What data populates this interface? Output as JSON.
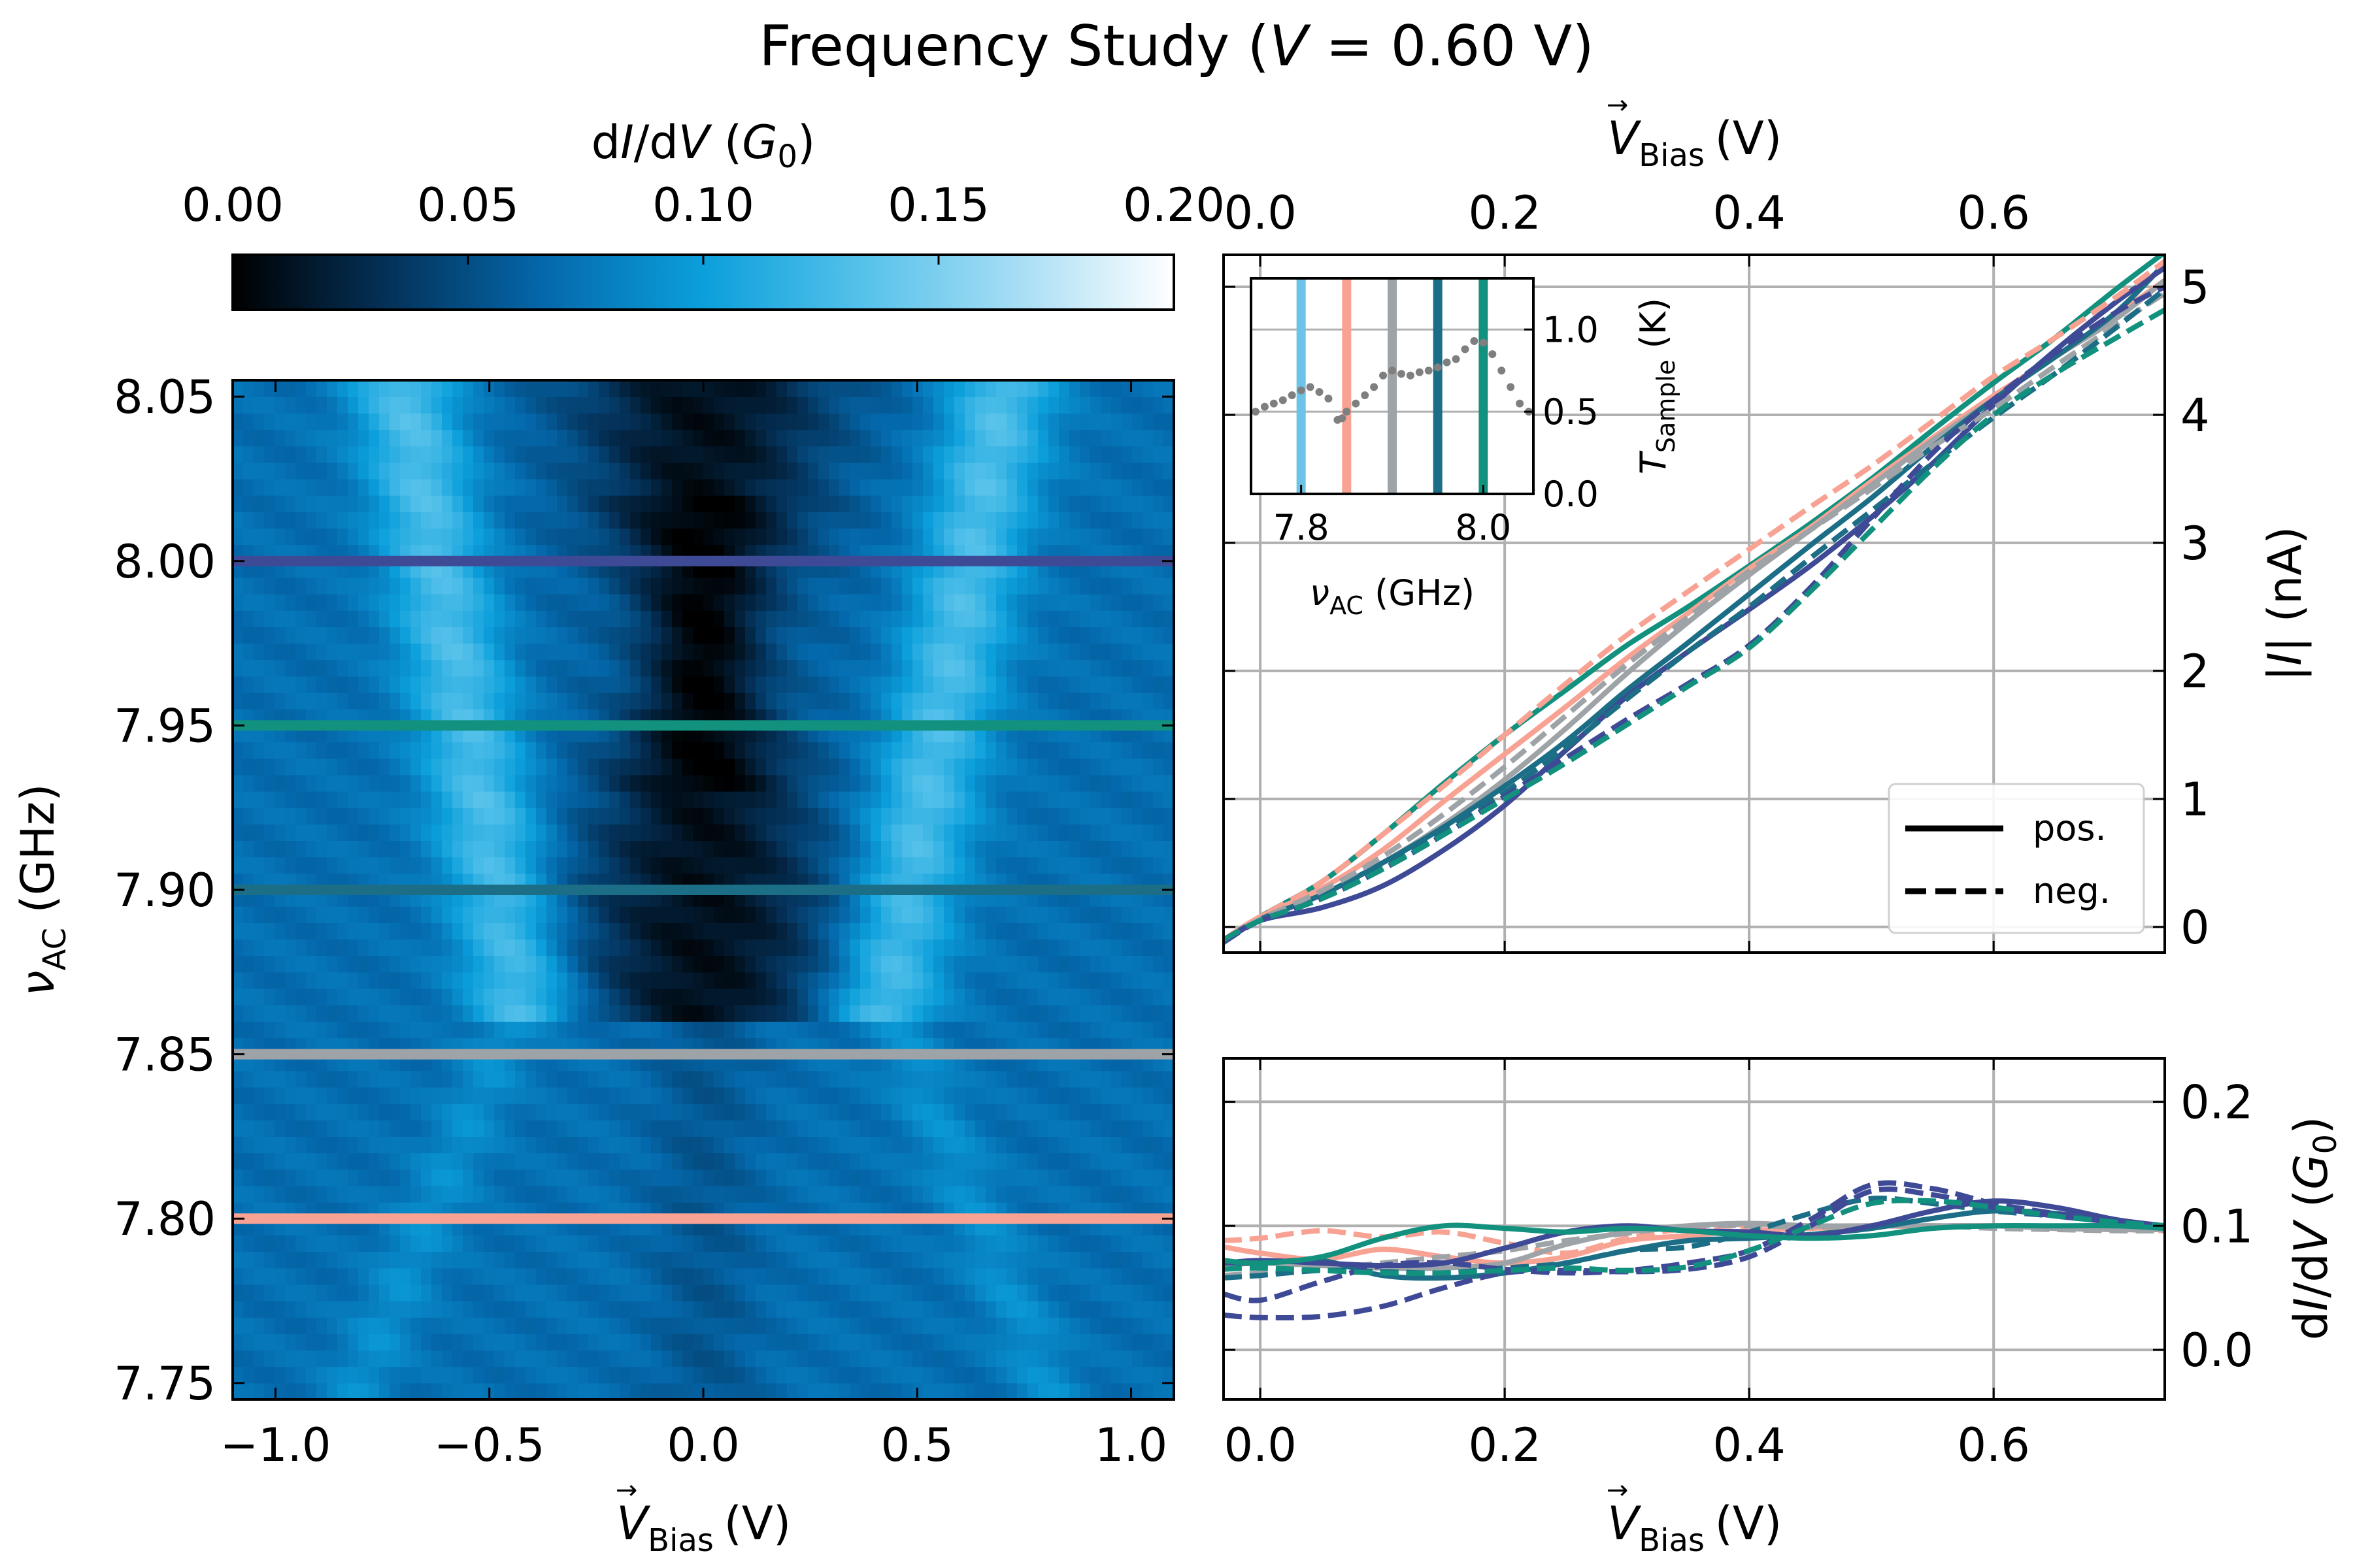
{
  "colors": {
    "purple": "#3f4a96",
    "teal": "#12917f",
    "darkteal": "#1c6e86",
    "gray": "#9ea3a7",
    "salmon": "#f8a293",
    "skyblue": "#6cc3e6",
    "dots": "#7f7f7f",
    "grid": "#b0b0b0"
  },
  "colormap": {
    "label_pre": "d",
    "label_I": "I",
    "label_mid": "/d",
    "label_V": "V",
    "label_paren_open": " (",
    "label_G": "G",
    "label_0": "0",
    "label_paren_close": ")",
    "ticks": [
      "0.00",
      "0.05",
      "0.10",
      "0.15",
      "0.20"
    ],
    "range": [
      0,
      0.2
    ],
    "stops": [
      "#000000",
      "#04325a",
      "#0469ac",
      "#0b9fdb",
      "#54c1ea",
      "#a6ddf4",
      "#ffffff"
    ]
  },
  "chart_data": [
    {
      "type": "heatmap",
      "title": "Frequency Study (V = 0.60 V)",
      "xlabel": "V→Bias (V)",
      "ylabel": "νAC (GHz)",
      "xlim": [
        -1.1,
        1.1
      ],
      "ylim": [
        7.745,
        8.055
      ],
      "xticks": [
        "−1.0",
        "−0.5",
        "0.0",
        "0.5",
        "1.0"
      ],
      "yticks": [
        "7.75",
        "7.80",
        "7.85",
        "7.90",
        "7.95",
        "8.00",
        "8.05"
      ],
      "yticks_values": [
        7.75,
        7.8,
        7.85,
        7.9,
        7.95,
        8.0,
        8.05
      ],
      "xticks_values": [
        -1.0,
        -0.5,
        0.0,
        0.5,
        1.0
      ],
      "colorbar_label": "dI/dV (G0)",
      "colorbar_range": [
        0,
        0.2
      ],
      "baseline_dIdV": 0.07,
      "features": [
        {
          "kind": "central dip",
          "x_center": 0.0,
          "min_dIdV": 0.01,
          "y_range": [
            7.86,
            8.055
          ]
        },
        {
          "kind": "side maxima",
          "x_center": [
            -0.55,
            0.55
          ],
          "max_dIdV": 0.13,
          "y_range": [
            7.86,
            8.055
          ]
        }
      ],
      "highlight_lines": [
        {
          "y": 8.0,
          "color": "purple"
        },
        {
          "y": 7.95,
          "color": "teal"
        },
        {
          "y": 7.9,
          "color": "darkteal"
        },
        {
          "y": 7.85,
          "color": "gray"
        },
        {
          "y": 7.8,
          "color": "salmon"
        }
      ]
    },
    {
      "type": "line",
      "xlabel": "V→Bias (V)",
      "ylabel": "|I| (nA)",
      "xlim": [
        -0.03,
        0.74
      ],
      "ylim": [
        -0.2,
        5.25
      ],
      "xticks": [
        "0.0",
        "0.2",
        "0.4",
        "0.6"
      ],
      "xticks_values": [
        0.0,
        0.2,
        0.4,
        0.6
      ],
      "yticks": [
        "0",
        "1",
        "2",
        "3",
        "4",
        "5"
      ],
      "yticks_values": [
        0,
        1,
        2,
        3,
        4,
        5
      ],
      "legend": {
        "entries": [
          "pos.",
          "neg."
        ],
        "placement": "lower right"
      },
      "x": [
        -0.03,
        0.0,
        0.05,
        0.1,
        0.15,
        0.2,
        0.25,
        0.3,
        0.35,
        0.4,
        0.45,
        0.5,
        0.55,
        0.6,
        0.65,
        0.7,
        0.74
      ],
      "series": [
        {
          "color": "teal",
          "dash": false,
          "values": [
            -0.12,
            0.08,
            0.35,
            0.72,
            1.12,
            1.5,
            1.85,
            2.2,
            2.5,
            2.82,
            3.15,
            3.5,
            3.88,
            4.25,
            4.6,
            4.98,
            5.27
          ]
        },
        {
          "color": "salmon",
          "dash": false,
          "values": [
            -0.1,
            0.08,
            0.3,
            0.6,
            0.98,
            1.35,
            1.72,
            2.1,
            2.45,
            2.8,
            3.12,
            3.48,
            3.82,
            4.15,
            4.45,
            4.78,
            5.05
          ]
        },
        {
          "color": "gray",
          "dash": false,
          "values": [
            -0.1,
            0.06,
            0.25,
            0.5,
            0.8,
            1.15,
            1.55,
            1.98,
            2.38,
            2.75,
            3.1,
            3.45,
            3.8,
            4.12,
            4.45,
            4.75,
            5.05
          ]
        },
        {
          "color": "darkteal",
          "dash": false,
          "values": [
            -0.1,
            0.06,
            0.25,
            0.5,
            0.78,
            1.1,
            1.45,
            1.85,
            2.22,
            2.6,
            2.98,
            3.35,
            3.75,
            4.12,
            4.45,
            4.8,
            5.18
          ]
        },
        {
          "color": "purple",
          "dash": false,
          "values": [
            -0.12,
            0.05,
            0.15,
            0.32,
            0.6,
            0.95,
            1.38,
            1.8,
            2.15,
            2.48,
            2.82,
            3.2,
            3.62,
            4.08,
            4.5,
            4.88,
            5.15
          ]
        },
        {
          "color": "salmon",
          "dash": true,
          "values": [
            -0.1,
            0.08,
            0.35,
            0.72,
            1.1,
            1.5,
            1.9,
            2.28,
            2.62,
            2.95,
            3.28,
            3.6,
            3.95,
            4.3,
            4.6,
            4.92,
            5.2
          ]
        },
        {
          "color": "gray",
          "dash": true,
          "values": [
            -0.1,
            0.06,
            0.28,
            0.55,
            0.88,
            1.25,
            1.65,
            2.05,
            2.42,
            2.78,
            3.1,
            3.42,
            3.75,
            4.05,
            4.38,
            4.7,
            4.95
          ]
        },
        {
          "color": "darkteal",
          "dash": true,
          "values": [
            -0.1,
            0.05,
            0.22,
            0.46,
            0.75,
            1.05,
            1.4,
            1.78,
            2.15,
            2.5,
            2.88,
            3.25,
            3.62,
            3.98,
            4.32,
            4.68,
            4.98
          ]
        },
        {
          "color": "purple",
          "dash": true,
          "values": [
            -0.12,
            0.05,
            0.22,
            0.45,
            0.72,
            1.02,
            1.32,
            1.62,
            1.9,
            2.2,
            2.65,
            3.18,
            3.7,
            4.12,
            4.48,
            4.8,
            5.0
          ]
        },
        {
          "color": "teal",
          "dash": true,
          "values": [
            -0.1,
            0.05,
            0.22,
            0.45,
            0.72,
            1.0,
            1.28,
            1.58,
            1.88,
            2.18,
            2.62,
            3.1,
            3.58,
            4.0,
            4.32,
            4.6,
            4.82
          ]
        }
      ]
    },
    {
      "type": "line",
      "xlabel": "V→Bias (V)",
      "ylabel": "dI/dV (G0)",
      "xlim": [
        -0.03,
        0.74
      ],
      "ylim": [
        -0.04,
        0.235
      ],
      "xticks": [
        "0.0",
        "0.2",
        "0.4",
        "0.6"
      ],
      "xticks_values": [
        0.0,
        0.2,
        0.4,
        0.6
      ],
      "yticks": [
        "0.0",
        "0.1",
        "0.2"
      ],
      "yticks_values": [
        0.0,
        0.1,
        0.2
      ],
      "x": [
        -0.03,
        0.0,
        0.05,
        0.1,
        0.15,
        0.2,
        0.25,
        0.3,
        0.35,
        0.4,
        0.45,
        0.5,
        0.55,
        0.6,
        0.65,
        0.7,
        0.74
      ],
      "series": [
        {
          "color": "salmon",
          "dash": true,
          "values": [
            0.088,
            0.09,
            0.096,
            0.091,
            0.095,
            0.086,
            0.078,
            0.09,
            0.098,
            0.1,
            0.098,
            0.1,
            0.1,
            0.1,
            0.098,
            0.097,
            0.096
          ]
        },
        {
          "color": "salmon",
          "dash": false,
          "values": [
            0.083,
            0.078,
            0.073,
            0.081,
            0.075,
            0.07,
            0.075,
            0.088,
            0.092,
            0.096,
            0.098,
            0.1,
            0.099,
            0.1,
            0.098,
            0.097,
            0.097
          ]
        },
        {
          "color": "gray",
          "dash": false,
          "values": [
            0.068,
            0.07,
            0.068,
            0.066,
            0.066,
            0.07,
            0.085,
            0.095,
            0.1,
            0.102,
            0.1,
            0.1,
            0.1,
            0.1,
            0.098,
            0.097,
            0.097
          ]
        },
        {
          "color": "gray",
          "dash": true,
          "values": [
            0.06,
            0.062,
            0.065,
            0.07,
            0.075,
            0.08,
            0.088,
            0.094,
            0.1,
            0.1,
            0.099,
            0.1,
            0.1,
            0.098,
            0.097,
            0.096,
            0.096
          ]
        },
        {
          "color": "darkteal",
          "dash": false,
          "values": [
            0.07,
            0.07,
            0.072,
            0.06,
            0.058,
            0.062,
            0.07,
            0.08,
            0.088,
            0.09,
            0.093,
            0.098,
            0.106,
            0.112,
            0.11,
            0.104,
            0.1
          ]
        },
        {
          "color": "darkteal",
          "dash": true,
          "values": [
            0.058,
            0.06,
            0.064,
            0.063,
            0.062,
            0.066,
            0.07,
            0.08,
            0.083,
            0.095,
            0.11,
            0.122,
            0.118,
            0.112,
            0.108,
            0.104,
            0.1
          ]
        },
        {
          "color": "purple",
          "dash": false,
          "values": [
            0.07,
            0.072,
            0.07,
            0.068,
            0.07,
            0.082,
            0.095,
            0.1,
            0.096,
            0.095,
            0.092,
            0.1,
            0.112,
            0.12,
            0.115,
            0.105,
            0.1
          ]
        },
        {
          "color": "purple",
          "dash": true,
          "values": [
            0.045,
            0.04,
            0.055,
            0.068,
            0.07,
            0.065,
            0.062,
            0.064,
            0.07,
            0.08,
            0.105,
            0.133,
            0.13,
            0.118,
            0.11,
            0.104,
            0.1
          ]
        },
        {
          "color": "purple",
          "dash": true,
          "values": [
            0.028,
            0.026,
            0.027,
            0.035,
            0.05,
            0.062,
            0.064,
            0.063,
            0.065,
            0.075,
            0.1,
            0.128,
            0.125,
            0.115,
            0.108,
            0.103,
            0.1
          ]
        },
        {
          "color": "teal",
          "dash": false,
          "values": [
            0.072,
            0.07,
            0.075,
            0.09,
            0.1,
            0.098,
            0.095,
            0.098,
            0.096,
            0.092,
            0.09,
            0.092,
            0.098,
            0.1,
            0.1,
            0.1,
            0.098
          ]
        },
        {
          "color": "teal",
          "dash": true,
          "values": [
            0.065,
            0.066,
            0.064,
            0.062,
            0.062,
            0.064,
            0.066,
            0.064,
            0.067,
            0.08,
            0.1,
            0.118,
            0.12,
            0.115,
            0.108,
            0.103,
            0.1
          ]
        }
      ]
    },
    {
      "type": "scatter",
      "xlabel": "νAC (GHz)",
      "ylabel": "TSample (K)",
      "xlim": [
        7.745,
        8.055
      ],
      "ylim": [
        0.0,
        1.2
      ],
      "xticks": [
        "7.8",
        "8.0"
      ],
      "xticks_values": [
        7.8,
        8.0
      ],
      "yticks": [
        "0.0",
        "0.5",
        "1.0"
      ],
      "yticks_values": [
        0.0,
        0.5,
        1.0
      ],
      "marker_color": "dots",
      "x": [
        7.75,
        7.76,
        7.77,
        7.78,
        7.79,
        7.8,
        7.81,
        7.82,
        7.83,
        7.84,
        7.845,
        7.85,
        7.86,
        7.87,
        7.88,
        7.89,
        7.9,
        7.91,
        7.92,
        7.93,
        7.94,
        7.95,
        7.96,
        7.97,
        7.98,
        7.99,
        8.0,
        8.01,
        8.02,
        8.03,
        8.04,
        8.05
      ],
      "values": [
        0.5,
        0.53,
        0.55,
        0.57,
        0.6,
        0.63,
        0.65,
        0.62,
        0.58,
        0.45,
        0.46,
        0.5,
        0.55,
        0.6,
        0.65,
        0.72,
        0.75,
        0.73,
        0.72,
        0.74,
        0.75,
        0.77,
        0.8,
        0.82,
        0.88,
        0.93,
        0.92,
        0.85,
        0.75,
        0.65,
        0.55,
        0.5
      ],
      "vlines": [
        {
          "x": 7.8,
          "color": "skyblue"
        },
        {
          "x": 7.85,
          "color": "salmon"
        },
        {
          "x": 7.9,
          "color": "gray"
        },
        {
          "x": 7.95,
          "color": "darkteal"
        },
        {
          "x": 8.0,
          "color": "teal"
        }
      ]
    }
  ],
  "labels": {
    "title_prefix": "Frequency Study (",
    "title_V": "V",
    "title_suffix": " = 0.60 V)",
    "vbias_V": "V",
    "vbias_sub": "Bias",
    "vbias_arrow": "→",
    "vbias_unit": " (V)",
    "nu": "ν",
    "nu_sub": "AC",
    "nu_unit": " (GHz)",
    "I_open": "|",
    "I_sym": "I",
    "I_close": "| (nA)",
    "T": "T",
    "T_sub": "Sample",
    "T_unit": " (K)",
    "legend_pos": "pos.",
    "legend_neg": "neg."
  }
}
